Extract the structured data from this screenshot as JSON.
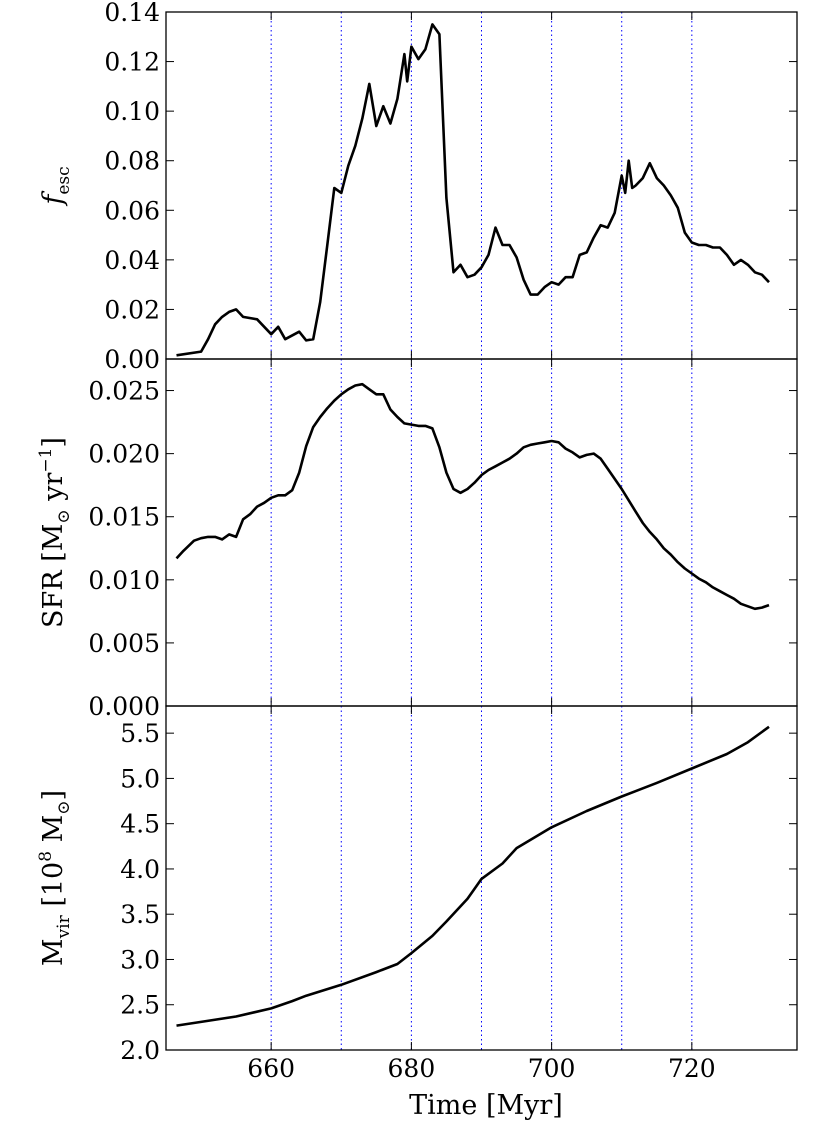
{
  "chart_data": {
    "type": "line",
    "shared_x": {
      "label": "Time [Myr]",
      "lim": [
        645,
        735
      ],
      "ticks": [
        660,
        680,
        700,
        720
      ],
      "tick_labels": [
        "660",
        "680",
        "700",
        "720"
      ],
      "guide_lines": [
        660,
        670,
        680,
        690,
        700,
        710,
        720
      ],
      "guide_color": "#0000ff",
      "line_color": "#000000"
    },
    "panels": [
      {
        "id": "fesc",
        "ylabel_main": "f",
        "ylabel_sub": "esc",
        "ylim": [
          0,
          0.14
        ],
        "yticks": [
          0.0,
          0.02,
          0.04,
          0.06,
          0.08,
          0.1,
          0.12,
          0.14
        ],
        "ytick_labels": [
          "0.00",
          "0.02",
          "0.04",
          "0.06",
          "0.08",
          "0.10",
          "0.12",
          "0.14"
        ],
        "x": [
          646.5,
          650,
          651,
          652,
          653,
          654,
          655,
          656,
          658,
          659,
          660,
          661,
          662,
          664,
          665,
          666,
          667,
          668,
          669,
          670,
          671,
          672,
          673,
          674,
          675,
          676,
          677,
          678,
          679,
          679.4,
          680,
          681,
          682,
          683,
          684,
          685,
          686,
          687,
          688,
          689,
          690,
          691,
          692,
          693,
          694,
          695,
          696,
          697,
          698,
          699,
          700,
          701,
          702,
          703,
          704,
          705,
          706,
          707,
          708,
          709,
          710,
          710.5,
          711,
          711.5,
          712,
          713,
          714,
          715,
          716,
          717,
          718,
          719,
          720,
          721,
          722,
          723,
          724,
          725,
          726,
          727,
          728,
          729,
          730,
          731
        ],
        "y": [
          0.0015,
          0.003,
          0.008,
          0.014,
          0.017,
          0.019,
          0.02,
          0.017,
          0.016,
          0.013,
          0.01,
          0.013,
          0.008,
          0.011,
          0.0075,
          0.008,
          0.023,
          0.046,
          0.069,
          0.067,
          0.078,
          0.086,
          0.097,
          0.111,
          0.094,
          0.102,
          0.095,
          0.105,
          0.123,
          0.112,
          0.126,
          0.121,
          0.125,
          0.135,
          0.131,
          0.065,
          0.035,
          0.038,
          0.033,
          0.034,
          0.037,
          0.042,
          0.053,
          0.046,
          0.046,
          0.041,
          0.032,
          0.026,
          0.026,
          0.029,
          0.031,
          0.03,
          0.033,
          0.033,
          0.042,
          0.043,
          0.049,
          0.054,
          0.053,
          0.059,
          0.074,
          0.067,
          0.08,
          0.069,
          0.07,
          0.073,
          0.079,
          0.073,
          0.07,
          0.066,
          0.061,
          0.051,
          0.047,
          0.046,
          0.046,
          0.045,
          0.045,
          0.042,
          0.038,
          0.04,
          0.038,
          0.035,
          0.034,
          0.031
        ]
      },
      {
        "id": "sfr",
        "ylabel_main": "SFR [M",
        "ylabel_sun": "⊙",
        "ylabel_rest": " yr",
        "ylabel_sup": "−1",
        "ylabel_end": "]",
        "ylim": [
          0,
          0.0275
        ],
        "yticks": [
          0.0,
          0.005,
          0.01,
          0.015,
          0.02,
          0.025
        ],
        "ytick_labels": [
          "0.000",
          "0.005",
          "0.010",
          "0.015",
          "0.020",
          "0.025"
        ],
        "x": [
          646.5,
          647.5,
          649,
          650,
          651,
          652,
          653,
          654,
          655,
          656,
          657,
          658,
          659,
          660,
          661,
          662,
          663,
          664,
          665,
          666,
          667,
          668,
          669,
          670,
          671,
          672,
          673,
          674,
          675,
          676,
          677,
          678,
          679,
          680,
          681,
          682,
          683,
          684,
          685,
          686,
          687,
          688,
          689,
          690,
          691,
          692,
          693,
          694,
          695,
          696,
          697,
          698,
          699,
          700,
          701,
          702,
          703,
          704,
          705,
          706,
          707,
          708,
          709,
          710,
          711,
          712,
          713,
          714,
          715,
          716,
          717,
          718,
          719,
          720,
          721,
          722,
          723,
          724,
          725,
          726,
          727,
          728,
          729,
          730,
          731
        ],
        "y": [
          0.0117,
          0.0123,
          0.0131,
          0.0133,
          0.0134,
          0.0134,
          0.0132,
          0.0136,
          0.0134,
          0.0148,
          0.0152,
          0.0158,
          0.0161,
          0.0165,
          0.0167,
          0.0167,
          0.0171,
          0.0185,
          0.0206,
          0.0221,
          0.0229,
          0.0236,
          0.0242,
          0.0247,
          0.0251,
          0.0254,
          0.0255,
          0.0251,
          0.0247,
          0.0247,
          0.0235,
          0.0229,
          0.0224,
          0.0223,
          0.0222,
          0.0222,
          0.022,
          0.0205,
          0.0185,
          0.0172,
          0.0169,
          0.0172,
          0.0177,
          0.0183,
          0.0187,
          0.019,
          0.0193,
          0.0196,
          0.02,
          0.0205,
          0.0207,
          0.0208,
          0.0209,
          0.021,
          0.0209,
          0.0204,
          0.0201,
          0.0197,
          0.0199,
          0.02,
          0.0196,
          0.0188,
          0.018,
          0.0172,
          0.0163,
          0.0154,
          0.0145,
          0.0138,
          0.0132,
          0.0125,
          0.012,
          0.0114,
          0.0109,
          0.0105,
          0.0101,
          0.0098,
          0.0094,
          0.0091,
          0.0088,
          0.0085,
          0.0081,
          0.0079,
          0.0077,
          0.0078,
          0.008
        ]
      },
      {
        "id": "mvir",
        "ylabel_main": "M",
        "ylabel_sub": "vir",
        "ylabel_rest": " [10",
        "ylabel_sup": "8",
        "ylabel_mid": " M",
        "ylabel_sun": "⊙",
        "ylabel_end": "]",
        "ylim": [
          2.0,
          5.8
        ],
        "yticks": [
          2.0,
          2.5,
          3.0,
          3.5,
          4.0,
          4.5,
          5.0,
          5.5
        ],
        "ytick_labels": [
          "2.0",
          "2.5",
          "3.0",
          "3.5",
          "4.0",
          "4.5",
          "5.0",
          "5.5"
        ],
        "x": [
          646.5,
          650,
          655,
          660,
          663,
          665,
          670,
          675,
          678,
          680,
          683,
          685,
          688,
          690,
          693,
          695,
          700,
          705,
          710,
          715,
          720,
          725,
          728,
          731
        ],
        "y": [
          2.27,
          2.31,
          2.37,
          2.46,
          2.54,
          2.6,
          2.72,
          2.86,
          2.95,
          3.07,
          3.26,
          3.42,
          3.67,
          3.89,
          4.06,
          4.23,
          4.46,
          4.64,
          4.8,
          4.95,
          5.11,
          5.27,
          5.4,
          5.57
        ]
      }
    ]
  }
}
